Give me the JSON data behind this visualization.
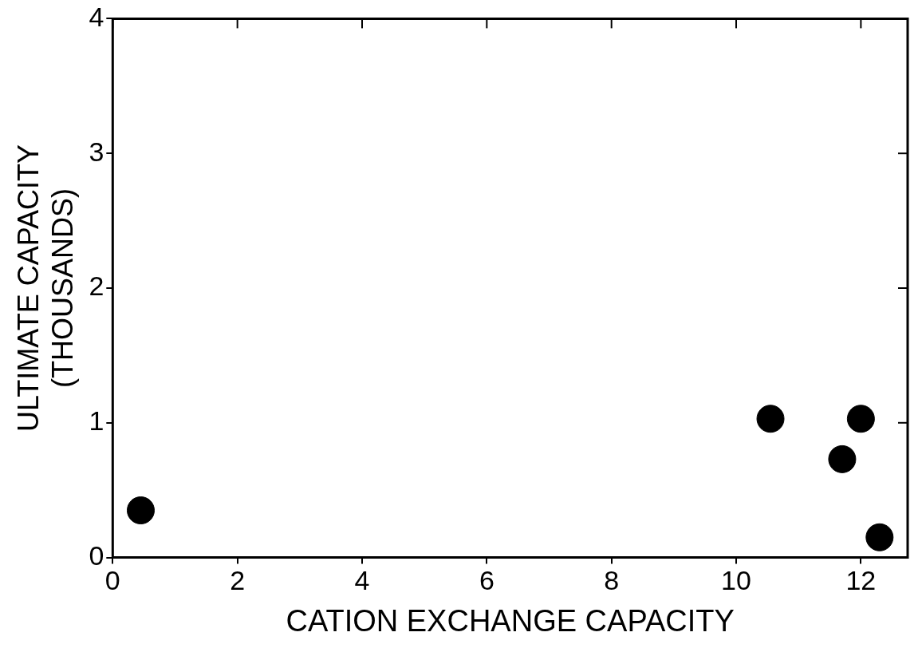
{
  "chart_data": {
    "type": "scatter",
    "xlabel": "CATION EXCHANGE CAPACITY",
    "ylabel": "ULTIMATE CAPACITY\n(THOUSANDS)",
    "series": [
      {
        "color": "#000000",
        "x": [
          0.45,
          10.55,
          12.0,
          11.7,
          12.3
        ],
        "values": [
          0.35,
          1.03,
          1.03,
          0.73,
          0.15
        ]
      }
    ],
    "xlim": [
      0,
      12.75
    ],
    "xticks": [
      0,
      2,
      4,
      6,
      8,
      10,
      12
    ],
    "ylim": [
      0,
      4
    ],
    "yticks": [
      0,
      1,
      2,
      3,
      4
    ],
    "grid": false,
    "legend": false,
    "marker": "circle"
  }
}
